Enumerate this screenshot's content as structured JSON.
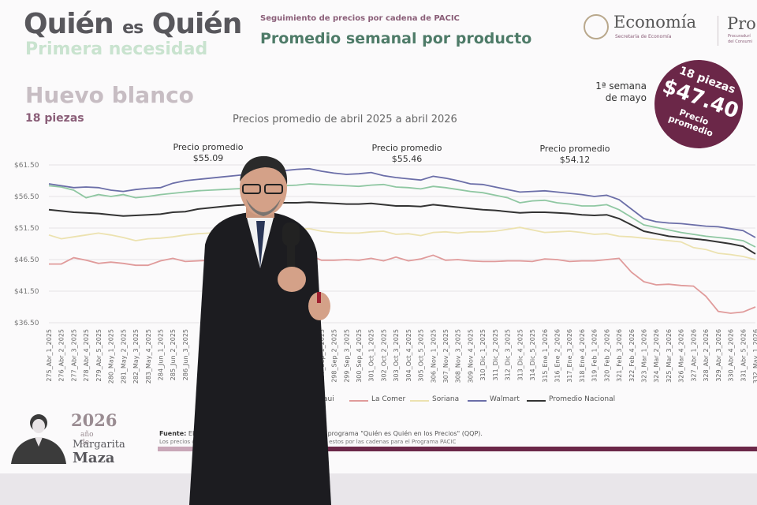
{
  "header": {
    "brand_line1_a": "Quién",
    "brand_line1_b": "es",
    "brand_line1_c": "Quién",
    "brand_line2": "Primera necesidad",
    "subtitle": "Seguimiento de precios por cadena de PACIC",
    "title": "Promedio semanal por producto"
  },
  "government": {
    "name": "Economía",
    "secretariat": "Secretaría de Economía",
    "second_name": "Pro",
    "second_sub_1": "Procuradurí",
    "second_sub_2": "del Consumi"
  },
  "product": {
    "name": "Huevo blanco",
    "pieces": "18 piezas",
    "range_label": "Precios promedio de abril 2025 a abril 2026"
  },
  "badge": {
    "week_line1": "1ª semana",
    "week_line2": "de mayo",
    "pieces": "18 piezas",
    "price": "$47.40",
    "label_line1": "Precio",
    "label_line2": "promedio"
  },
  "averages": [
    {
      "label": "Precio promedio",
      "value": "$55.09"
    },
    {
      "label": "Precio promedio",
      "value": "$55.46"
    },
    {
      "label": "Precio promedio",
      "value": "$54.12"
    }
  ],
  "chart_data": {
    "type": "line",
    "title": "Precios promedio de abril 2025 a abril 2026",
    "ylim": [
      36.5,
      61.5
    ],
    "y_ticks": [
      "$61.50",
      "$56.50",
      "$51.50",
      "$46.50",
      "$41.50",
      "$36.50"
    ],
    "y_tick_values": [
      61.5,
      56.5,
      51.5,
      46.5,
      41.5,
      36.5
    ],
    "categories": [
      "275_Abr_1_2025",
      "276_Abr_2_2025",
      "277_Abr_3_2025",
      "278_Abr_4_2025",
      "279_Abr_5_2025",
      "280_May_1_2025",
      "281_May_2_2025",
      "282_May_3_2025",
      "283_May_4_2025",
      "284_Jun_1_2025",
      "285_Jun_2_2025",
      "286_Jun_3_2025",
      "287_Jun_4_2025",
      "288_Jul_1_2025",
      "289_Jul_2_2025",
      "290_Jul_3_2025",
      "291_Jul_4_2025",
      "292_Jul_5_2025",
      "293_Ago_1_2025",
      "294_Ago_2_2025",
      "295_Ago_3_2025",
      "296_Ago_4_2025",
      "297_Sep_1_2025",
      "298_Sep_2_2025",
      "299_Sep_3_2025",
      "300_Sep_4_2025",
      "301_Oct_1_2025",
      "302_Oct_2_2025",
      "303_Oct_3_2025",
      "304_Oct_4_2025",
      "305_Oct_5_2025",
      "306_Nov_1_2025",
      "307_Nov_2_2025",
      "308_Nov_3_2025",
      "309_Nov_4_2025",
      "310_Dic_1_2025",
      "311_Dic_2_2025",
      "312_Dic_3_2025",
      "313_Dic_4_2025",
      "314_Dic_5_2025",
      "315_Ene_1_2026",
      "316_Ene_2_2026",
      "317_Ene_3_2026",
      "318_Ene_4_2026",
      "319_Feb_1_2026",
      "320_Feb_2_2026",
      "321_Feb_3_2026",
      "322_Feb_4_2026",
      "323_Mar_1_2026",
      "324_Mar_2_2026",
      "325_Mar_3_2026",
      "326_Mar_4_2026",
      "327_Abr_1_2026",
      "328_Abr_2_2026",
      "329_Abr_3_2026",
      "330_Abr_4_2026",
      "331_Abr_5_2026",
      "332_May_1_2026"
    ],
    "x_tick_labels": [
      "275_Abr_1_2025",
      "276_Abr_2_2025",
      "277_Abr_3_2025",
      "278_Abr_4_2025",
      "279_Abr_5_2025",
      "280_May_1_2025",
      "281_May_2_2025",
      "282_May_3_2025",
      "283_May_4_2025",
      "284_Jun_1_2025",
      "285_Jun_2_2025",
      "286_Jun_3_2025",
      "296_Ago_4_2025",
      "297_Sep_1_2025",
      "298_Sep_2_2025",
      "299_Sep_3_2025",
      "300_Sep_4_2025",
      "301_Oct_1_2025",
      "302_Oct_2_2025",
      "303_Oct_3_2025",
      "304_Oct_4_2025",
      "305_Oct_5_2025",
      "306_Nov_1_2025",
      "307_Nov_2_2025",
      "308_Nov_3_2025",
      "309_Nov_4_2025",
      "310_Dic_1_2025",
      "311_Dic_2_2025",
      "312_Dic_3_2025",
      "313_Dic_4_2025",
      "314_Dic_5_2025",
      "315_Ene_1_2026",
      "316_Ene_2_2026",
      "317_Ene_3_2026",
      "318_Ene_4_2026",
      "319_Feb_1_2026",
      "320_Feb_2_2026",
      "321_Feb_3_2026",
      "322_Feb_4_2026",
      "323_Mar_1_2026",
      "324_Mar_2_2026",
      "325_Mar_3_2026",
      "326_Mar_4_2026",
      "327_Abr_1_2026",
      "328_Abr_2_2026",
      "329_Abr_3_2026",
      "330_Abr_4_2026",
      "331_Abr_5_2026",
      "332_May_1_2026"
    ],
    "series": [
      {
        "name": "Chedraui",
        "color": "#8fc7a2",
        "values": [
          58.2,
          58.0,
          57.5,
          56.3,
          56.8,
          56.5,
          56.8,
          56.3,
          56.5,
          56.8,
          57.0,
          57.2,
          57.4,
          57.5,
          57.6,
          57.7,
          57.8,
          57.9,
          58.0,
          58.2,
          58.3,
          58.5,
          58.4,
          58.3,
          58.2,
          58.1,
          58.3,
          58.4,
          58.0,
          57.9,
          57.7,
          58.1,
          57.9,
          57.6,
          57.3,
          57.1,
          56.7,
          56.3,
          55.5,
          55.8,
          55.9,
          55.5,
          55.3,
          55.0,
          55.0,
          55.2,
          54.4,
          53.2,
          52.0,
          51.6,
          51.2,
          50.8,
          50.5,
          50.2,
          50.0,
          49.8,
          49.5,
          48.5
        ]
      },
      {
        "name": "La Comer",
        "color": "#e09b9b",
        "values": [
          45.8,
          45.8,
          46.8,
          46.4,
          45.9,
          46.1,
          45.9,
          45.6,
          45.6,
          46.3,
          46.7,
          46.2,
          46.3,
          46.4,
          46.5,
          46.6,
          46.7,
          46.8,
          46.9,
          47.0,
          47.0,
          47.2,
          46.4,
          46.4,
          46.5,
          46.4,
          46.7,
          46.3,
          46.9,
          46.3,
          46.6,
          47.2,
          46.4,
          46.5,
          46.3,
          46.2,
          46.2,
          46.3,
          46.3,
          46.2,
          46.6,
          46.5,
          46.2,
          46.3,
          46.3,
          46.5,
          46.7,
          44.5,
          43.0,
          42.5,
          42.6,
          42.4,
          42.3,
          40.7,
          38.3,
          38.0,
          38.2,
          39.0
        ]
      },
      {
        "name": "Soriana",
        "color": "#ece2b0",
        "values": [
          50.4,
          49.8,
          50.1,
          50.4,
          50.7,
          50.4,
          50.0,
          49.5,
          49.8,
          49.9,
          50.1,
          50.4,
          50.6,
          50.7,
          50.8,
          50.8,
          50.9,
          51.0,
          51.0,
          51.2,
          51.3,
          51.4,
          51.0,
          50.8,
          50.7,
          50.7,
          50.9,
          51.0,
          50.5,
          50.6,
          50.3,
          50.8,
          50.9,
          50.7,
          50.9,
          50.9,
          51.0,
          51.3,
          51.6,
          51.2,
          50.8,
          50.9,
          51.0,
          50.8,
          50.5,
          50.6,
          50.2,
          50.1,
          49.9,
          49.7,
          49.5,
          49.3,
          48.4,
          48.1,
          47.5,
          47.3,
          47.0,
          46.5
        ]
      },
      {
        "name": "Walmart",
        "color": "#6b6ea8",
        "values": [
          58.5,
          58.2,
          57.9,
          58.0,
          57.9,
          57.5,
          57.3,
          57.6,
          57.8,
          57.9,
          58.6,
          59.0,
          59.2,
          59.4,
          59.6,
          59.8,
          60.0,
          60.2,
          60.4,
          60.6,
          60.8,
          60.9,
          60.5,
          60.2,
          60.0,
          60.1,
          60.3,
          59.8,
          59.5,
          59.3,
          59.1,
          59.7,
          59.4,
          59.0,
          58.5,
          58.4,
          58.0,
          57.6,
          57.2,
          57.3,
          57.4,
          57.2,
          57.0,
          56.8,
          56.5,
          56.7,
          56.0,
          54.5,
          53.0,
          52.5,
          52.3,
          52.2,
          52.0,
          51.8,
          51.7,
          51.4,
          51.1,
          50.0
        ]
      },
      {
        "name": "Promedio Nacional",
        "color": "#333333",
        "values": [
          54.4,
          54.2,
          54.0,
          53.9,
          53.8,
          53.6,
          53.4,
          53.5,
          53.6,
          53.7,
          54.0,
          54.1,
          54.5,
          54.7,
          54.9,
          55.1,
          55.2,
          55.3,
          55.4,
          55.5,
          55.5,
          55.6,
          55.5,
          55.4,
          55.3,
          55.3,
          55.4,
          55.2,
          55.0,
          55.0,
          54.9,
          55.2,
          55.0,
          54.8,
          54.6,
          54.4,
          54.3,
          54.1,
          53.9,
          54.0,
          54.0,
          53.9,
          53.8,
          53.6,
          53.5,
          53.6,
          53.0,
          52.0,
          51.0,
          50.6,
          50.2,
          50.0,
          49.8,
          49.6,
          49.3,
          49.0,
          48.6,
          47.4
        ]
      }
    ],
    "legend_position": "bottom",
    "grid": true
  },
  "footer": {
    "source_label": "Fuente:",
    "source_text_a": "Elabora",
    "source_text_b": "os del programa \"Quién es Quién en los Precios\" (QQP).",
    "note_a": "Los precios corr",
    "note_b": "estos por las cadenas para el Programa PACIC"
  },
  "commemorative": {
    "year": "2026",
    "line1": "año de",
    "line2": "Margarita",
    "line3": "Maza"
  },
  "colors": {
    "primary": "#6b2748",
    "accent_green": "#4e7b68"
  }
}
